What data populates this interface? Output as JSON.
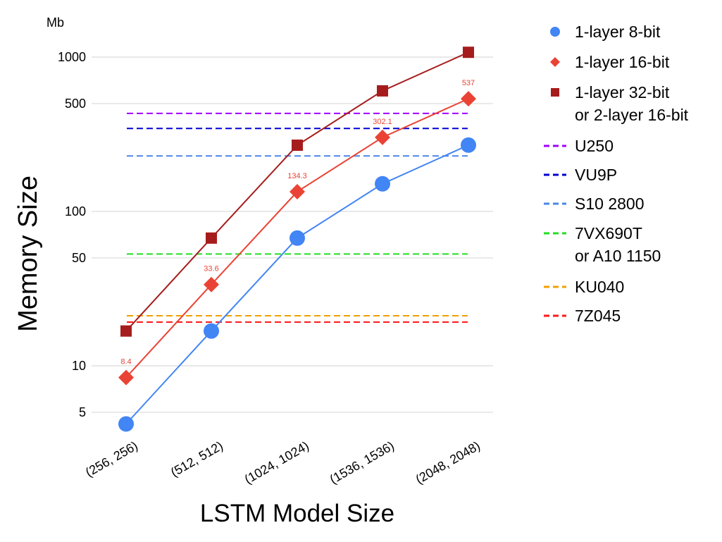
{
  "chart_data": {
    "type": "line",
    "yscale": "log",
    "ylabel": "Memory Size",
    "xlabel": "LSTM Model Size",
    "y_unit": "Mb",
    "categories": [
      "(256, 256)",
      "(512, 512)",
      "(1024, 1024)",
      "(1536, 1536)",
      "(2048, 2048)"
    ],
    "y_ticks": [
      5,
      10,
      50,
      100,
      500,
      1000
    ],
    "ylim": [
      4.2,
      1150
    ],
    "grid": true,
    "legend_position": "right",
    "series": [
      {
        "name": "1-layer 8-bit",
        "marker": "circle",
        "color": "#4285f4",
        "values": [
          4.2,
          16.8,
          67.2,
          151,
          269
        ]
      },
      {
        "name": "1-layer 16-bit",
        "marker": "diamond",
        "color": "#ea4335",
        "values": [
          8.4,
          33.6,
          134.3,
          302.1,
          537
        ],
        "data_labels": [
          "8.4",
          "33.6",
          "134.3",
          "302.1",
          "537"
        ]
      },
      {
        "name": "1-layer 32-bit",
        "name_line2": "or 2-layer 16-bit",
        "marker": "square",
        "color": "#a61c1c",
        "values": [
          16.8,
          67.2,
          268.6,
          604.2,
          1074
        ]
      }
    ],
    "reference_lines": [
      {
        "name": "U250",
        "value": 432,
        "color": "#a000ff"
      },
      {
        "name": "VU9P",
        "value": 345,
        "color": "#0000d0"
      },
      {
        "name": "S10 2800",
        "value": 229,
        "color": "#4a86e8"
      },
      {
        "name": "7VX690T",
        "name_line2": "or A10 1150",
        "value": 53,
        "color": "#22dd22"
      },
      {
        "name": "KU040",
        "value": 21.1,
        "color": "#f0a000"
      },
      {
        "name": "7Z045",
        "value": 19.2,
        "color": "#ff1a1a"
      }
    ]
  }
}
